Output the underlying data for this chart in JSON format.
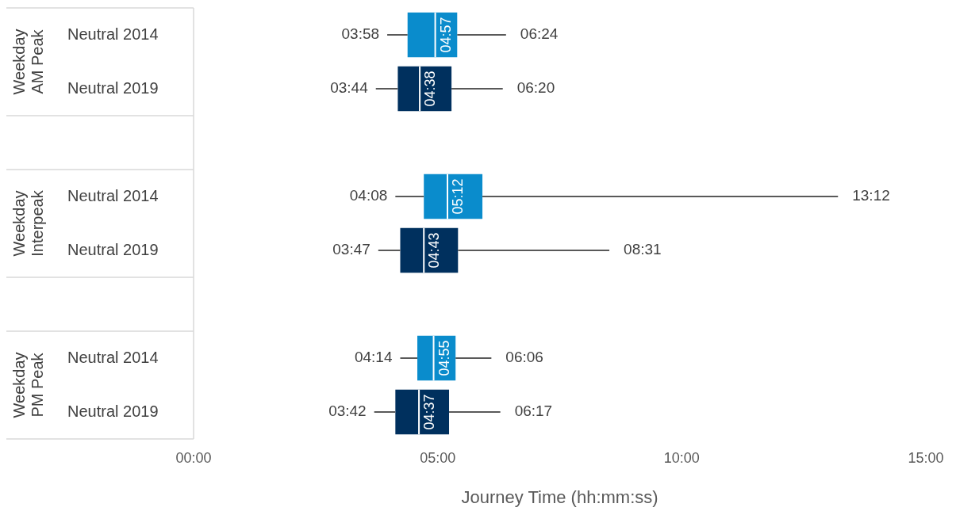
{
  "chart_data": {
    "type": "box",
    "orientation": "horizontal",
    "categories": [
      "Neutral 2014",
      "Neutral 2019",
      null,
      "Neutral 2014",
      "Neutral 2019",
      null,
      "Neutral 2014",
      "Neutral 2019"
    ],
    "series": [
      {
        "colors": [
          "#0a8ccc",
          "#00305e",
          null,
          "#0a8ccc",
          "#00305e",
          null,
          "#0a8ccc",
          "#00305e"
        ],
        "boxes": [
          {
            "low": 238,
            "q1": 263,
            "median": 297,
            "q3": 324,
            "high": 384
          },
          {
            "low": 224,
            "q1": 251,
            "median": 278,
            "q3": 317,
            "high": 380
          },
          null,
          {
            "low": 248,
            "q1": 283,
            "median": 312,
            "q3": 355,
            "high": 792
          },
          {
            "low": 227,
            "q1": 254,
            "median": 283,
            "q3": 325,
            "high": 511
          },
          null,
          {
            "low": 254,
            "q1": 275,
            "median": 295,
            "q3": 322,
            "high": 366
          },
          {
            "low": 222,
            "q1": 248,
            "median": 277,
            "q3": 314,
            "high": 377
          }
        ],
        "value_labels": [
          [
            "03:58",
            "04:57",
            "06:24"
          ],
          [
            "03:44",
            "04:38",
            "06:20"
          ],
          null,
          [
            "04:08",
            "05:12",
            "13:12"
          ],
          [
            "03:47",
            "04:43",
            "08:31"
          ],
          null,
          [
            "04:14",
            "04:55",
            "06:06"
          ],
          [
            "03:42",
            "04:37",
            "06:17"
          ]
        ]
      }
    ],
    "annotations": [
      "Weekday AM Peak",
      "Weekday Interpeak",
      "Weekday PM Peak"
    ],
    "xlim": [
      0,
      900
    ],
    "xticks": [
      {
        "value": 0,
        "label": "00:00"
      },
      {
        "value": 300,
        "label": "05:00"
      },
      {
        "value": 600,
        "label": "10:00"
      },
      {
        "value": 900,
        "label": "15:00"
      }
    ],
    "xlabel": "Journey Time (hh:mm:ss)"
  }
}
